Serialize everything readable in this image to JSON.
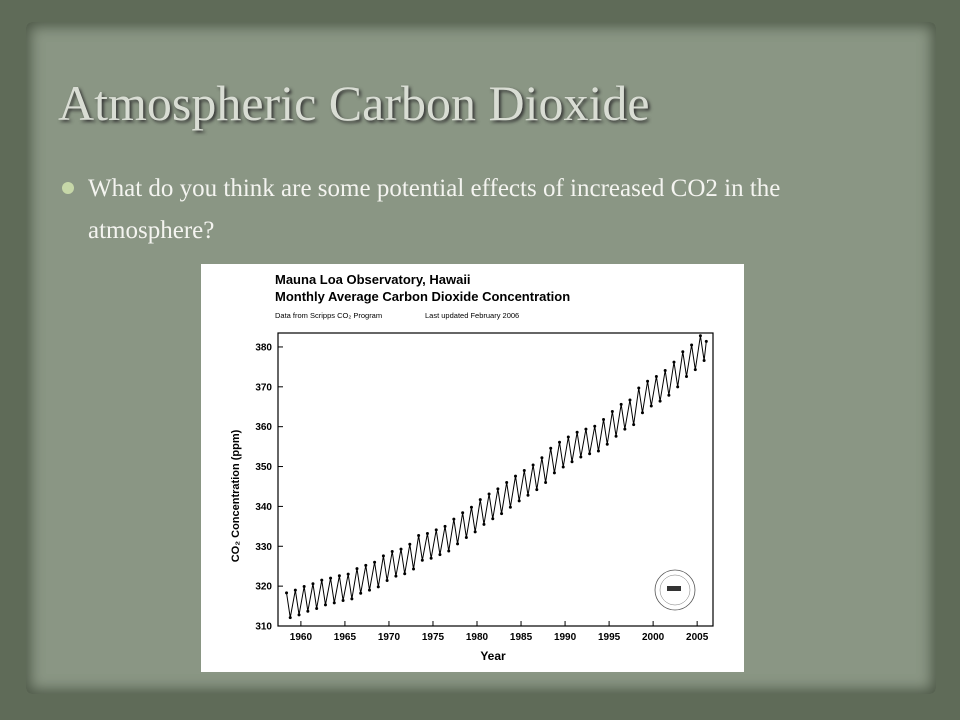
{
  "slide": {
    "title": "Atmospheric Carbon Dioxide",
    "bullet": "What do you think are some potential effects of increased CO2 in the atmosphere?"
  },
  "chart_data": {
    "type": "line",
    "title": "Mauna Loa Observatory, Hawaii",
    "subtitle": "Monthly Average Carbon Dioxide Concentration",
    "source": "Data from Scripps CO₂ Program",
    "updated": "Last updated February 2006",
    "xlabel": "Year",
    "ylabel": "CO₂ Concentration (ppm)",
    "x": [
      1958.37,
      1958.79,
      1959.37,
      1959.79,
      1960.37,
      1960.79,
      1961.37,
      1961.79,
      1962.37,
      1962.79,
      1963.37,
      1963.79,
      1964.37,
      1964.79,
      1965.37,
      1965.79,
      1966.37,
      1966.79,
      1967.37,
      1967.79,
      1968.37,
      1968.79,
      1969.37,
      1969.79,
      1970.37,
      1970.79,
      1971.37,
      1971.79,
      1972.37,
      1972.79,
      1973.37,
      1973.79,
      1974.37,
      1974.79,
      1975.37,
      1975.79,
      1976.37,
      1976.79,
      1977.37,
      1977.79,
      1978.37,
      1978.79,
      1979.37,
      1979.79,
      1980.37,
      1980.79,
      1981.37,
      1981.79,
      1982.37,
      1982.79,
      1983.37,
      1983.79,
      1984.37,
      1984.79,
      1985.37,
      1985.79,
      1986.37,
      1986.79,
      1987.37,
      1987.79,
      1988.37,
      1988.79,
      1989.37,
      1989.79,
      1990.37,
      1990.79,
      1991.37,
      1991.79,
      1992.37,
      1992.79,
      1993.37,
      1993.79,
      1994.37,
      1994.79,
      1995.37,
      1995.79,
      1996.37,
      1996.79,
      1997.37,
      1997.79,
      1998.37,
      1998.79,
      1999.37,
      1999.79,
      2000.37,
      2000.79,
      2001.37,
      2001.79,
      2002.37,
      2002.79,
      2003.37,
      2003.79,
      2004.37,
      2004.79,
      2005.37,
      2005.79,
      2006.04
    ],
    "series": [
      {
        "name": "CO₂",
        "color": "#000000",
        "values": [
          318.3,
          312.1,
          319.0,
          312.8,
          319.9,
          313.7,
          320.6,
          314.4,
          321.5,
          315.3,
          322.0,
          315.8,
          322.6,
          316.4,
          323.0,
          316.8,
          324.4,
          318.2,
          325.2,
          319.0,
          326.0,
          319.8,
          327.6,
          321.4,
          328.7,
          322.5,
          329.3,
          323.1,
          330.5,
          324.3,
          332.7,
          326.5,
          333.2,
          327.0,
          334.1,
          327.9,
          335.0,
          328.8,
          336.8,
          330.6,
          338.4,
          332.2,
          339.8,
          333.6,
          341.7,
          335.5,
          343.1,
          336.9,
          344.4,
          338.2,
          346.0,
          339.8,
          347.6,
          341.4,
          349.0,
          342.8,
          350.4,
          344.2,
          352.2,
          346.0,
          354.6,
          348.4,
          356.1,
          349.9,
          357.4,
          351.2,
          358.6,
          352.4,
          359.4,
          353.2,
          360.1,
          353.9,
          361.8,
          355.6,
          363.8,
          357.6,
          365.6,
          359.4,
          366.7,
          360.5,
          369.7,
          363.5,
          371.4,
          365.2,
          372.6,
          366.4,
          374.1,
          367.9,
          376.2,
          370.0,
          378.8,
          372.6,
          380.5,
          374.3,
          382.8,
          376.6,
          381.4
        ]
      }
    ],
    "xlim": [
      1957.4,
      2006.8
    ],
    "ylim": [
      310,
      383.5
    ],
    "xticks": [
      1960,
      1965,
      1970,
      1975,
      1980,
      1985,
      1990,
      1995,
      2000,
      2005
    ],
    "yticks": [
      310,
      320,
      330,
      340,
      350,
      360,
      370,
      380
    ],
    "grid": false
  }
}
